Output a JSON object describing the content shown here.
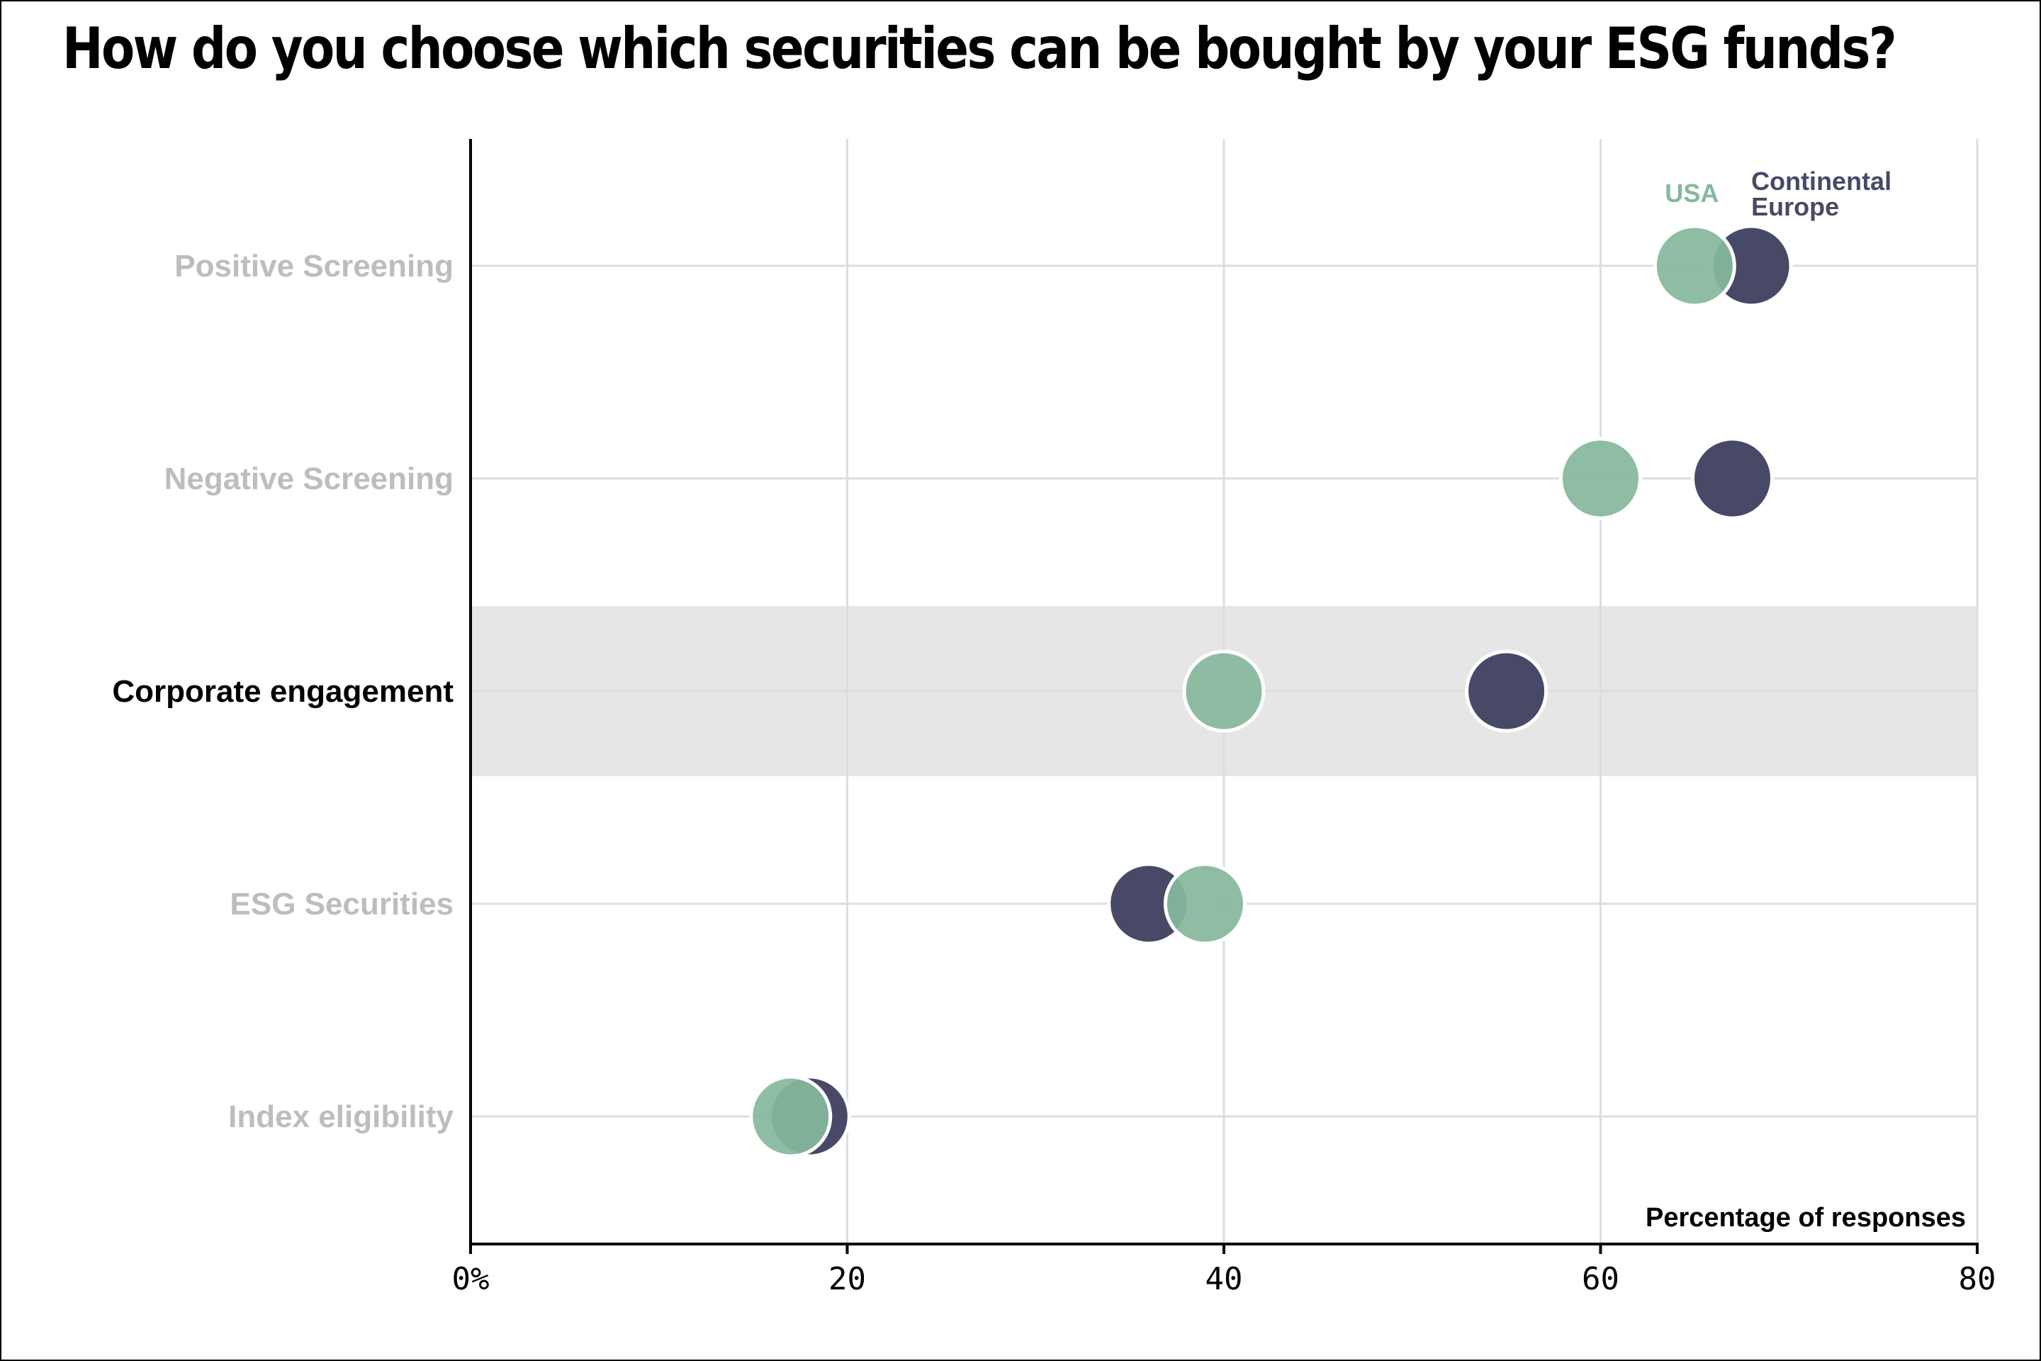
{
  "chart_data": {
    "type": "scatter",
    "title": "How do you choose which securities can be bought by your ESG funds?",
    "xlabel": "Percentage of responses",
    "xlim": [
      0,
      80
    ],
    "xticks": [
      0,
      20,
      40,
      60,
      80
    ],
    "xtick_labels": [
      "0%",
      "20",
      "40",
      "60",
      "80"
    ],
    "categories": [
      "Positive Screening",
      "Negative Screening",
      "Corporate engagement",
      "ESG Securities",
      "Index eligibility"
    ],
    "highlighted_category": "Corporate engagement",
    "series": [
      {
        "name": "Continental Europe",
        "name_lines": [
          "Continental",
          "Europe"
        ],
        "color": "#474966",
        "values": [
          68,
          67,
          55,
          36,
          18
        ]
      },
      {
        "name": "USA",
        "name_lines": [
          "USA"
        ],
        "color": "#85B89C",
        "values": [
          65,
          60,
          40,
          39,
          17
        ]
      }
    ],
    "grid": true,
    "legend": "top-right",
    "colors": {
      "highlight_band": "#E6E6E6",
      "grid": "#DDDDDD",
      "muted_label": "#BDBDBD",
      "active_label": "#000000",
      "axis": "#000000"
    }
  }
}
